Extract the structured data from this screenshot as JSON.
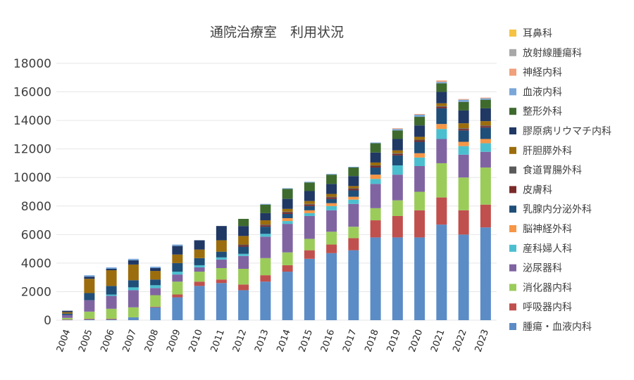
{
  "chart_data": {
    "type": "bar",
    "stacked": true,
    "title": "通院治療室　利用状況",
    "xlabel": "",
    "ylabel": "",
    "ylim": [
      0,
      18000
    ],
    "yticks": [
      0,
      2000,
      4000,
      6000,
      8000,
      10000,
      12000,
      14000,
      16000,
      18000
    ],
    "grid": true,
    "legend_position": "right",
    "categories": [
      "2004",
      "2005",
      "2006",
      "2007",
      "2008",
      "2009",
      "2010",
      "2011",
      "2012",
      "2013",
      "2014",
      "2015",
      "2016",
      "2017",
      "2018",
      "2019",
      "2020",
      "2021",
      "2022",
      "2023"
    ],
    "series": [
      {
        "name": "腫瘍・血液内科",
        "color": "#5b8cc6",
        "values": [
          30,
          60,
          60,
          200,
          900,
          1600,
          2400,
          2600,
          2100,
          2700,
          3400,
          4300,
          4700,
          4900,
          5800,
          5800,
          5800,
          6700,
          6000,
          6500
        ]
      },
      {
        "name": "呼吸器内科",
        "color": "#c0504d",
        "values": [
          30,
          40,
          40,
          0,
          50,
          200,
          300,
          250,
          400,
          450,
          450,
          600,
          600,
          850,
          1200,
          1500,
          1900,
          1900,
          1700,
          1600
        ]
      },
      {
        "name": "消化器内科",
        "color": "#9bcc5a",
        "values": [
          100,
          500,
          700,
          700,
          800,
          900,
          700,
          800,
          1100,
          1200,
          900,
          800,
          900,
          800,
          850,
          1100,
          1300,
          2400,
          2300,
          2600
        ]
      },
      {
        "name": "泌尿器科",
        "color": "#8064a2",
        "values": [
          200,
          800,
          900,
          1200,
          500,
          500,
          300,
          600,
          900,
          1500,
          2000,
          1600,
          1500,
          1600,
          1700,
          1800,
          1800,
          1700,
          1600,
          1100
        ]
      },
      {
        "name": "産科婦人科",
        "color": "#4bbfcf",
        "values": [
          0,
          0,
          100,
          200,
          200,
          200,
          150,
          150,
          150,
          200,
          200,
          200,
          300,
          300,
          350,
          650,
          600,
          700,
          600,
          600
        ]
      },
      {
        "name": "脳神経外科",
        "color": "#f79646",
        "values": [
          0,
          0,
          0,
          0,
          0,
          0,
          0,
          0,
          0,
          0,
          200,
          200,
          200,
          200,
          300,
          0,
          300,
          350,
          300,
          300
        ]
      },
      {
        "name": "乳腺内分泌外科",
        "color": "#1f4e79",
        "values": [
          100,
          500,
          600,
          500,
          400,
          600,
          500,
          400,
          500,
          500,
          300,
          300,
          300,
          450,
          500,
          700,
          800,
          1100,
          800,
          800
        ]
      },
      {
        "name": "皮膚科",
        "color": "#7b2a2a",
        "values": [
          0,
          0,
          0,
          0,
          0,
          0,
          0,
          0,
          100,
          100,
          100,
          100,
          100,
          100,
          100,
          100,
          100,
          100,
          100,
          100
        ]
      },
      {
        "name": "食道胃腸外科",
        "color": "#5a5a5a",
        "values": [
          0,
          0,
          0,
          0,
          0,
          0,
          0,
          0,
          50,
          50,
          50,
          50,
          50,
          50,
          50,
          50,
          50,
          50,
          50,
          50
        ]
      },
      {
        "name": "肝胆膵外科",
        "color": "#9c6d0c",
        "values": [
          100,
          1000,
          1100,
          1100,
          600,
          600,
          600,
          800,
          600,
          300,
          200,
          200,
          200,
          150,
          200,
          200,
          200,
          200,
          350,
          300
        ]
      },
      {
        "name": "膠原病リウマチ内科",
        "color": "#203864",
        "values": [
          100,
          150,
          100,
          300,
          200,
          600,
          650,
          1000,
          700,
          500,
          700,
          700,
          700,
          700,
          700,
          800,
          800,
          800,
          900,
          900
        ]
      },
      {
        "name": "整形外科",
        "color": "#3e6a2e",
        "values": [
          0,
          0,
          0,
          0,
          0,
          0,
          0,
          0,
          500,
          600,
          700,
          600,
          650,
          600,
          650,
          600,
          600,
          600,
          600,
          600
        ]
      },
      {
        "name": "血液内科",
        "color": "#7aa7d9",
        "values": [
          0,
          100,
          100,
          100,
          100,
          100,
          0,
          0,
          0,
          50,
          50,
          50,
          50,
          50,
          50,
          100,
          150,
          100,
          150,
          100
        ]
      },
      {
        "name": "神経内科",
        "color": "#f0a07a",
        "values": [
          0,
          0,
          0,
          0,
          0,
          0,
          0,
          0,
          0,
          0,
          0,
          0,
          0,
          0,
          0,
          50,
          50,
          100,
          50,
          50
        ]
      },
      {
        "name": "放射線腫瘍科",
        "color": "#a8a8a8",
        "values": [
          0,
          0,
          0,
          0,
          0,
          0,
          0,
          0,
          0,
          0,
          0,
          0,
          0,
          0,
          0,
          0,
          0,
          0,
          0,
          0
        ]
      },
      {
        "name": "耳鼻科",
        "color": "#f5c242",
        "values": [
          0,
          0,
          0,
          0,
          0,
          0,
          0,
          0,
          0,
          0,
          0,
          0,
          0,
          0,
          0,
          0,
          0,
          0,
          0,
          0
        ]
      }
    ]
  }
}
